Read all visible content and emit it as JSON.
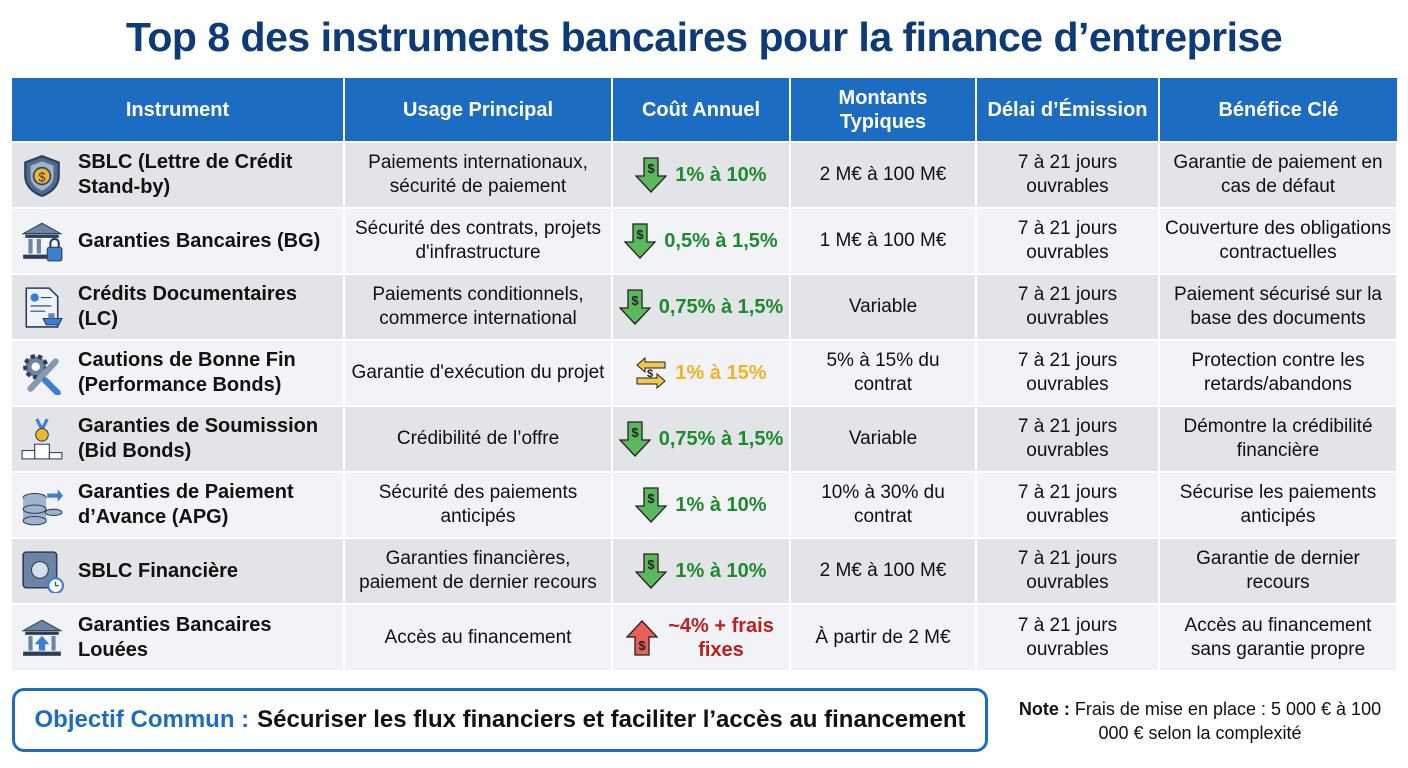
{
  "title": "Top 8 des instruments bancaires pour la finance d’entreprise",
  "headers": [
    "Instrument",
    "Usage Principal",
    "Coût Annuel",
    "Montants Typiques",
    "Délai d’Émission",
    "Bénéfice Clé"
  ],
  "colors": {
    "header": "#1c6dc2",
    "cost_low": "#1e8a2e",
    "cost_mid": "#f0b323",
    "cost_high": "#c21c1c"
  },
  "rows": [
    {
      "icon": "shield-dollar-icon",
      "instrument": "SBLC (Lettre de Crédit Stand-by)",
      "usage": "Paiements internationaux, sécurité de paiement",
      "cost_icon": "arrow-down-dollar-icon",
      "cost": "1% à 10%",
      "cost_level": "low",
      "amount": "2 M€ à 100 M€",
      "delay": "7 à 21 jours ouvrables",
      "benefit": "Garantie de paiement en cas de défaut"
    },
    {
      "icon": "bank-lock-icon",
      "instrument": "Garanties Bancaires (BG)",
      "usage": "Sécurité des contrats, projets d'infrastructure",
      "cost_icon": "arrow-down-dollar-icon",
      "cost": "0,5% à 1,5%",
      "cost_level": "low",
      "amount": "1 M€ à 100 M€",
      "delay": "7 à 21 jours ouvrables",
      "benefit": "Couverture des obligations contractuelles"
    },
    {
      "icon": "document-ship-icon",
      "instrument": "Crédits Documentaires (LC)",
      "usage": "Paiements conditionnels, commerce international",
      "cost_icon": "arrow-down-dollar-icon",
      "cost": "0,75% à 1,5%",
      "cost_level": "low",
      "amount": "Variable",
      "delay": "7 à 21 jours ouvrables",
      "benefit": "Paiement sécurisé sur la base des documents"
    },
    {
      "icon": "gear-wrench-icon",
      "instrument": "Cautions de Bonne Fin (Performance Bonds)",
      "usage": "Garantie d'exécution du projet",
      "cost_icon": "exchange-arrows-icon",
      "cost": "1% à 15%",
      "cost_level": "mid",
      "amount": "5% à 15% du contrat",
      "delay": "7 à 21 jours ouvrables",
      "benefit": "Protection contre les retards/abandons"
    },
    {
      "icon": "medal-podium-icon",
      "instrument": "Garanties de Soumission (Bid Bonds)",
      "usage": "Crédibilité de l’offre",
      "cost_icon": "arrow-down-dollar-icon",
      "cost": "0,75% à 1,5%",
      "cost_level": "low",
      "amount": "Variable",
      "delay": "7 à 21 jours ouvrables",
      "benefit": "Démontre la crédibilité financière"
    },
    {
      "icon": "coins-arrow-icon",
      "instrument": "Garanties de Paiement d’Avance (APG)",
      "usage": "Sécurité des paiements anticipés",
      "cost_icon": "arrow-down-dollar-icon",
      "cost": "1% à 10%",
      "cost_level": "low",
      "amount": "10% à 30% du contrat",
      "delay": "7 à 21 jours ouvrables",
      "benefit": "Sécurise les paiements anticipés"
    },
    {
      "icon": "safe-clock-icon",
      "instrument": "SBLC Financière",
      "usage": "Garanties financières, paiement de dernier recours",
      "cost_icon": "arrow-down-dollar-icon",
      "cost": "1% à 10%",
      "cost_level": "low",
      "amount": "2 M€ à 100 M€",
      "delay": "7 à 21 jours ouvrables",
      "benefit": "Garantie de dernier recours"
    },
    {
      "icon": "bank-arrow-up-icon",
      "instrument": "Garanties Bancaires Louées",
      "usage": "Accès au financement",
      "cost_icon": "arrow-up-dollar-icon",
      "cost": "~4% + frais fixes",
      "cost_level": "high",
      "amount": "À partir de 2 M€",
      "delay": "7 à 21 jours ouvrables",
      "benefit": "Accès au financement sans garantie propre"
    }
  ],
  "goal": {
    "label": "Objectif Commun :",
    "text": "Sécuriser les flux financiers et faciliter l’accès au financement"
  },
  "note": {
    "label": "Note :",
    "text": "Frais de mise en place : 5 000 € à 100 000 € selon la complexité"
  }
}
